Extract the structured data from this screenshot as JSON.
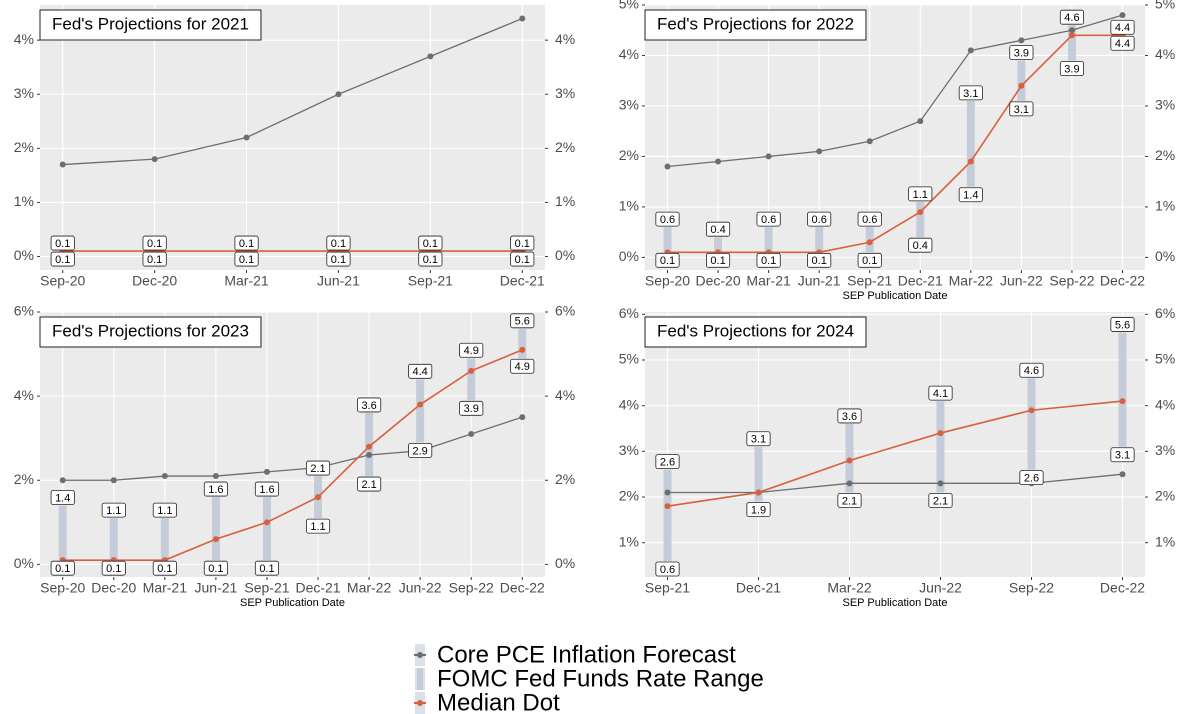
{
  "chart_data": [
    {
      "type": "line",
      "title": "Fed's Projections for 2021",
      "categories": [
        "Sep-20",
        "Dec-20",
        "Mar-21",
        "Jun-21",
        "Sep-21",
        "Dec-21"
      ],
      "series": [
        {
          "name": "Core PCE Inflation Forecast",
          "color": "#6e6e6e",
          "values": [
            1.7,
            1.8,
            2.2,
            3.0,
            3.7,
            4.4
          ]
        },
        {
          "name": "FOMC Fed Funds Rate Range",
          "color": "#c5ccd9",
          "low": [
            0.1,
            0.1,
            0.1,
            0.1,
            0.1,
            0.1
          ],
          "high": [
            0.1,
            0.1,
            0.1,
            0.1,
            0.1,
            0.1
          ]
        },
        {
          "name": "Median Dot",
          "color": "#d9603b",
          "values": [
            0.1,
            0.1,
            0.1,
            0.1,
            0.1,
            0.1
          ]
        }
      ],
      "ylim": [
        -0.25,
        4.65
      ],
      "yticks": [
        {
          "value": 0,
          "label": "0%"
        },
        {
          "value": 1,
          "label": "1%"
        },
        {
          "value": 2,
          "label": "2%"
        },
        {
          "value": 3,
          "label": "3%"
        },
        {
          "value": 4,
          "label": "4%"
        }
      ],
      "grid": true
    },
    {
      "type": "line",
      "title": "Fed's Projections for 2022",
      "x_label": "SEP Publication Date",
      "categories": [
        "Sep-20",
        "Dec-20",
        "Mar-21",
        "Jun-21",
        "Sep-21",
        "Dec-21",
        "Mar-22",
        "Jun-22",
        "Sep-22",
        "Dec-22"
      ],
      "series": [
        {
          "name": "Core PCE Inflation Forecast",
          "color": "#6e6e6e",
          "values": [
            1.8,
            1.9,
            2.0,
            2.1,
            2.3,
            2.7,
            4.1,
            4.3,
            4.5,
            4.8
          ]
        },
        {
          "name": "FOMC Fed Funds Rate Range",
          "color": "#c5ccd9",
          "low": [
            0.1,
            0.1,
            0.1,
            0.1,
            0.1,
            0.4,
            1.4,
            3.1,
            3.9,
            4.4
          ],
          "high": [
            0.6,
            0.4,
            0.6,
            0.6,
            0.6,
            1.1,
            3.1,
            3.9,
            4.6,
            4.4
          ]
        },
        {
          "name": "Median Dot",
          "color": "#d9603b",
          "values": [
            0.1,
            0.1,
            0.1,
            0.1,
            0.3,
            0.9,
            1.9,
            3.4,
            4.4,
            4.4
          ]
        }
      ],
      "ylim": [
        -0.25,
        5.0
      ],
      "yticks": [
        {
          "value": 0,
          "label": "0%"
        },
        {
          "value": 1,
          "label": "1%"
        },
        {
          "value": 2,
          "label": "2%"
        },
        {
          "value": 3,
          "label": "3%"
        },
        {
          "value": 4,
          "label": "4%"
        },
        {
          "value": 5,
          "label": "5%"
        }
      ],
      "grid": true
    },
    {
      "type": "line",
      "title": "Fed's Projections for 2023",
      "x_label": "SEP Publication Date",
      "categories": [
        "Sep-20",
        "Dec-20",
        "Mar-21",
        "Jun-21",
        "Sep-21",
        "Dec-21",
        "Mar-22",
        "Jun-22",
        "Sep-22",
        "Dec-22"
      ],
      "series": [
        {
          "name": "Core PCE Inflation Forecast",
          "color": "#6e6e6e",
          "values": [
            2.0,
            2.0,
            2.1,
            2.1,
            2.2,
            2.3,
            2.6,
            2.7,
            3.1,
            3.5
          ]
        },
        {
          "name": "FOMC Fed Funds Rate Range",
          "color": "#c5ccd9",
          "low": [
            0.1,
            0.1,
            0.1,
            0.1,
            0.1,
            1.1,
            2.1,
            2.9,
            3.9,
            4.9
          ],
          "high": [
            1.4,
            1.1,
            1.1,
            1.6,
            1.6,
            2.1,
            3.6,
            4.4,
            4.9,
            5.6
          ]
        },
        {
          "name": "Median Dot",
          "color": "#d9603b",
          "values": [
            0.1,
            0.1,
            0.1,
            0.6,
            1.0,
            1.6,
            2.8,
            3.8,
            4.6,
            5.1
          ]
        }
      ],
      "ylim": [
        -0.3,
        6.0
      ],
      "yticks": [
        {
          "value": 0,
          "label": "0%"
        },
        {
          "value": 2,
          "label": "2%"
        },
        {
          "value": 4,
          "label": "4%"
        },
        {
          "value": 6,
          "label": "6%"
        }
      ],
      "grid": true
    },
    {
      "type": "line",
      "title": "Fed's Projections for 2024",
      "x_label": "SEP Publication Date",
      "categories": [
        "Sep-21",
        "Dec-21",
        "Mar-22",
        "Jun-22",
        "Sep-22",
        "Dec-22"
      ],
      "series": [
        {
          "name": "Core PCE Inflation Forecast",
          "color": "#6e6e6e",
          "values": [
            2.1,
            2.1,
            2.3,
            2.3,
            2.3,
            2.5
          ]
        },
        {
          "name": "FOMC Fed Funds Rate Range",
          "color": "#c5ccd9",
          "low": [
            0.6,
            1.9,
            2.1,
            2.1,
            2.6,
            3.1
          ],
          "high": [
            2.6,
            3.1,
            3.6,
            4.1,
            4.6,
            5.6
          ]
        },
        {
          "name": "Median Dot",
          "color": "#d9603b",
          "values": [
            1.8,
            2.1,
            2.8,
            3.4,
            3.9,
            4.1
          ]
        }
      ],
      "ylim": [
        0.25,
        6.05
      ],
      "yticks": [
        {
          "value": 1,
          "label": "1%"
        },
        {
          "value": 2,
          "label": "2%"
        },
        {
          "value": 3,
          "label": "3%"
        },
        {
          "value": 4,
          "label": "4%"
        },
        {
          "value": 5,
          "label": "5%"
        },
        {
          "value": 6,
          "label": "6%"
        }
      ],
      "grid": true
    }
  ]
}
